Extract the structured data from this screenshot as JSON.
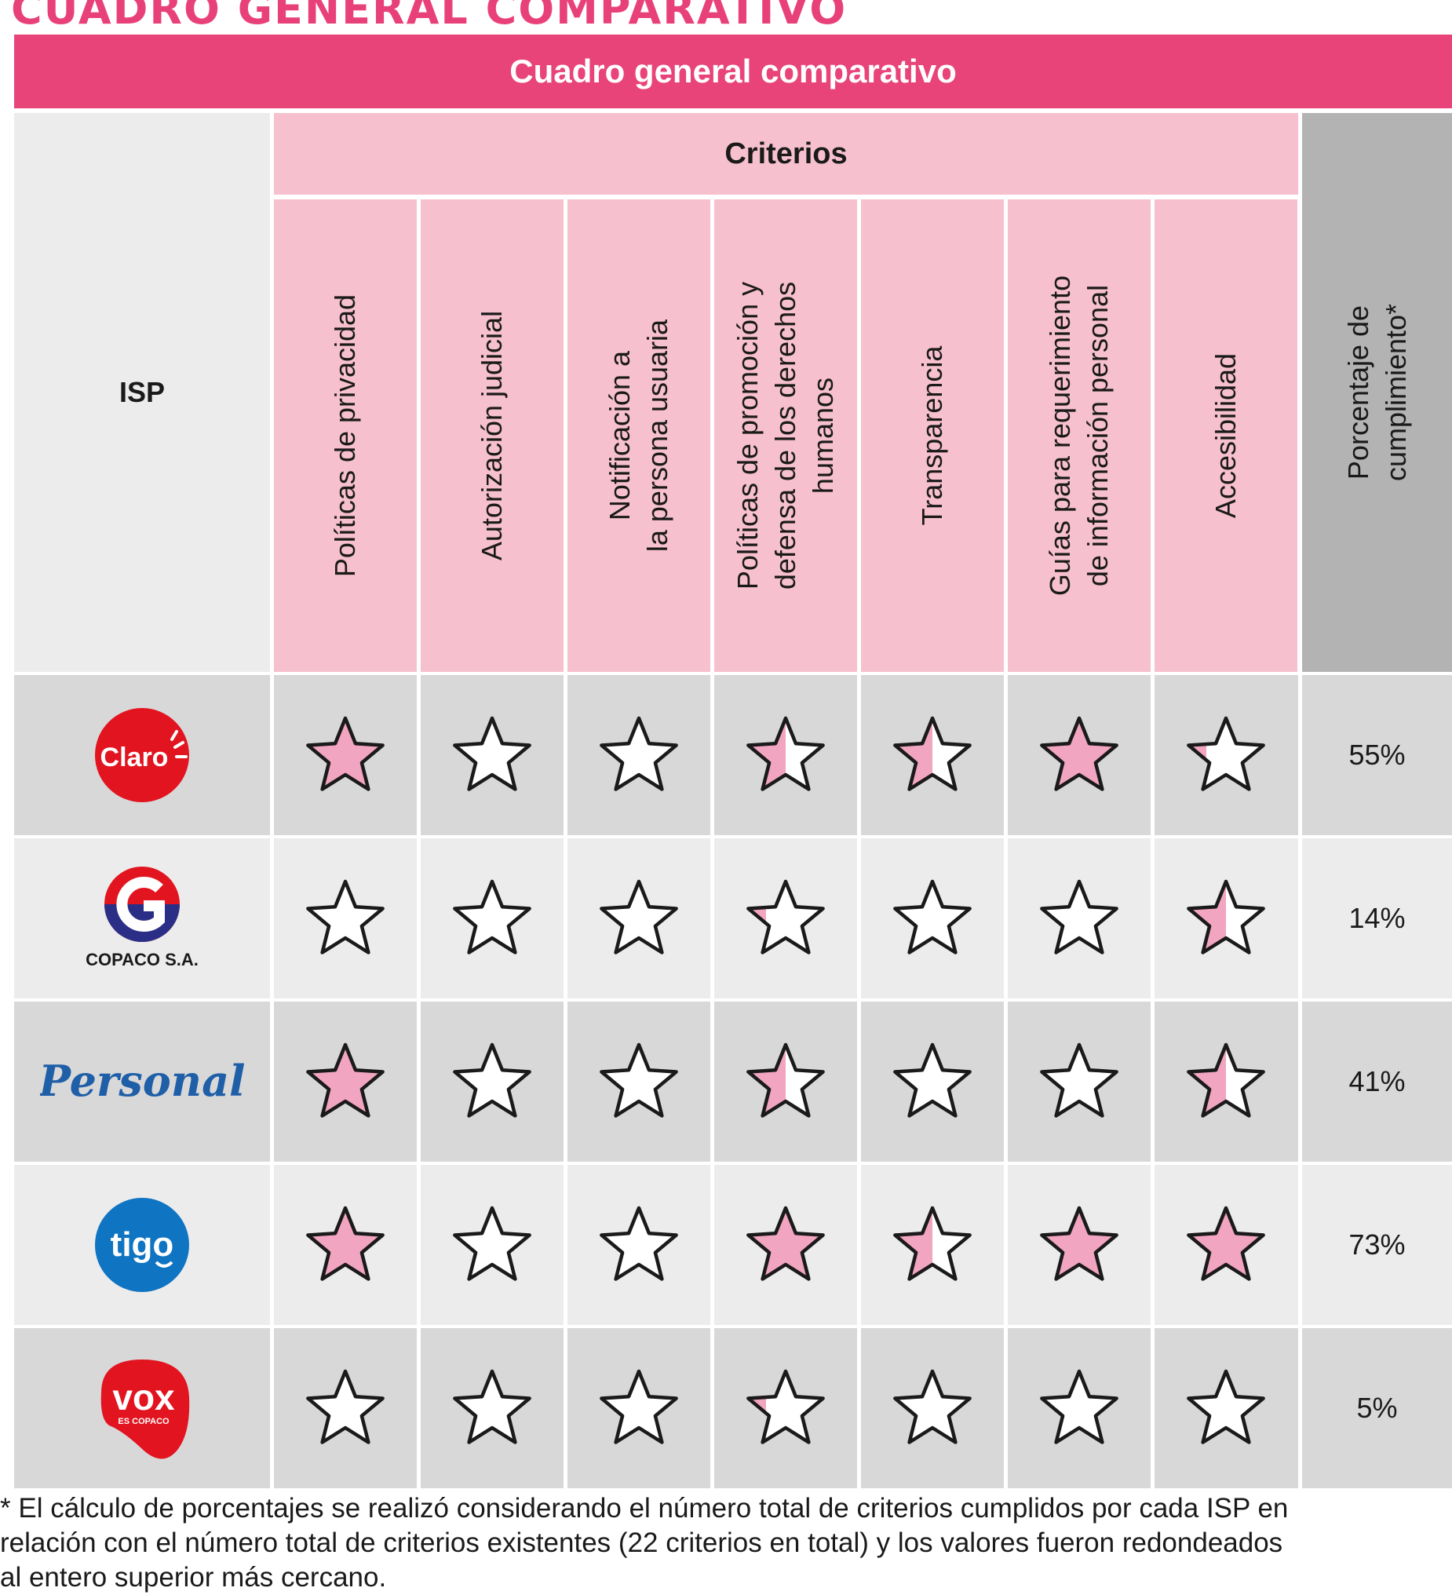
{
  "page_heading": "CUADRO GENERAL COMPARATIVO",
  "table_title": "Cuadro general comparativo",
  "isp_header": "ISP",
  "criterios_header": "Criterios",
  "criteria": [
    "Políticas de privacidad",
    "Autorización judicial",
    "Notificación a\nla persona usuaria",
    "Políticas de promoción y\ndefensa de los derechos\nhumanos",
    "Transparencia",
    "Guías para requerimiento\nde información personal",
    "Accesibilidad"
  ],
  "percentage_header": "Porcentaje de\ncumplimiento*",
  "colors": {
    "accent": "#e8447a",
    "header_pink": "#f7c0ce",
    "star_fill": "#f2a5c0",
    "row_dark": "#d8d8d8",
    "row_light": "#ececec",
    "pct_header": "#b3b3b3"
  },
  "rows": [
    {
      "isp": "Claro",
      "logo": {
        "icon": "claro-logo",
        "text": "Claro"
      },
      "star_fill_fractions": [
        1,
        0,
        0,
        0.5,
        0.5,
        1,
        0.25
      ],
      "percentage": "55%"
    },
    {
      "isp": "COPACO S.A.",
      "logo": {
        "icon": "copaco-logo",
        "text": "COPACO S.A."
      },
      "star_fill_fractions": [
        0,
        0,
        0,
        0.25,
        0,
        0,
        0.5
      ],
      "percentage": "14%"
    },
    {
      "isp": "Personal",
      "logo": {
        "icon": "personal-logo",
        "text": "Personal"
      },
      "star_fill_fractions": [
        1,
        0,
        0,
        0.5,
        0,
        0,
        0.5
      ],
      "percentage": "41%"
    },
    {
      "isp": "Tigo",
      "logo": {
        "icon": "tigo-logo",
        "text": "tigo"
      },
      "star_fill_fractions": [
        1,
        0,
        0,
        1,
        0.5,
        1,
        1
      ],
      "percentage": "73%"
    },
    {
      "isp": "VOX",
      "logo": {
        "icon": "vox-logo",
        "text": "vox",
        "subtext": "ES COPACO"
      },
      "star_fill_fractions": [
        0,
        0,
        0,
        0.25,
        0,
        0,
        0
      ],
      "percentage": "5%"
    }
  ],
  "footnote": "* El cálculo de porcentajes se realizó considerando el número total de criterios cumplidos por cada ISP en\nrelación con el número total de criterios existentes (22 criterios en total) y los valores fueron redondeados\nal entero superior más cercano."
}
